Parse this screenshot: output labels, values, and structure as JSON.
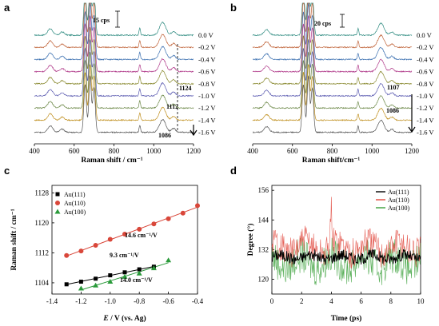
{
  "figure": {
    "panel_letters": [
      "a",
      "b",
      "c",
      "d"
    ]
  },
  "chart_data": [
    {
      "panel": "a",
      "type": "line",
      "xlabel": "Raman shift / cm⁻¹",
      "xlim": [
        400,
        1200
      ],
      "xticks": [
        "400",
        "600",
        "800",
        "1000",
        "1200"
      ],
      "series_labels": [
        "0.0 V",
        "-0.2 V",
        "-0.4 V",
        "-0.6 V",
        "-0.8 V",
        "-1.0 V",
        "-1.2 V",
        "-1.4 V",
        "-1.6 V"
      ],
      "series_colors": [
        "#2e8b80",
        "#c0643a",
        "#3a6fb0",
        "#b03a8a",
        "#8a8a30",
        "#5a5ab0",
        "#6e8a4a",
        "#c09020",
        "#555555"
      ],
      "annotations": [
        "15 cps",
        "1124",
        "1112",
        "1086"
      ],
      "peaks": [
        {
          "center": 480,
          "width": 18,
          "height": 8
        },
        {
          "center": 540,
          "width": 15,
          "height": 4
        },
        {
          "center": 655,
          "width": 9,
          "height": 60
        },
        {
          "center": 680,
          "width": 9,
          "height": 70
        },
        {
          "center": 700,
          "width": 9,
          "height": 55
        },
        {
          "center": 930,
          "width": 5,
          "height": 9
        },
        {
          "center": 1045,
          "width": 22,
          "height": 16
        },
        {
          "center": 1100,
          "width": 14,
          "height": 5
        }
      ]
    },
    {
      "panel": "b",
      "type": "line",
      "xlabel": "Raman shift/cm⁻¹",
      "xlim": [
        400,
        1200
      ],
      "xticks": [
        "400",
        "600",
        "800",
        "1000",
        "1200"
      ],
      "series_labels": [
        "0.0 V",
        "-0.2 V",
        "-0.4 V",
        "-0.6 V",
        "-0.8 V",
        "-1.0 V",
        "-1.2 V",
        "-1.4 V",
        "-1.6 V"
      ],
      "series_colors": [
        "#2e8b80",
        "#c0643a",
        "#3a6fb0",
        "#b03a8a",
        "#8a8a30",
        "#5a5ab0",
        "#6e8a4a",
        "#c09020",
        "#555555"
      ],
      "annotations": [
        "20 cps",
        "1107",
        "1086"
      ],
      "peaks": [
        {
          "center": 470,
          "width": 18,
          "height": 7
        },
        {
          "center": 655,
          "width": 9,
          "height": 60
        },
        {
          "center": 680,
          "width": 9,
          "height": 70
        },
        {
          "center": 700,
          "width": 9,
          "height": 55
        },
        {
          "center": 930,
          "width": 5,
          "height": 8
        },
        {
          "center": 1045,
          "width": 22,
          "height": 15
        },
        {
          "center": 1100,
          "width": 14,
          "height": 4
        }
      ]
    },
    {
      "panel": "c",
      "type": "scatter",
      "xlabel": "E / V (vs. Ag)",
      "ylabel": "Raman shift / cm⁻¹",
      "xlim": [
        -1.4,
        -0.4
      ],
      "ylim": [
        1101,
        1130
      ],
      "xticks": [
        "-1.4",
        "-1.2",
        "-1.0",
        "-0.8",
        "-0.6",
        "-0.4"
      ],
      "yticks": [
        "1104",
        "1112",
        "1120",
        "1128"
      ],
      "series": [
        {
          "name": "Au(111)",
          "color": "#000000",
          "marker": "square",
          "x": [
            -1.3,
            -1.2,
            -1.1,
            -1.0,
            -0.9,
            -0.8,
            -0.7
          ],
          "y": [
            1103.6,
            1104.3,
            1105.1,
            1106.0,
            1106.8,
            1107.6,
            1108.3
          ],
          "slope_label": "9.3 cm⁻¹/V"
        },
        {
          "name": "Au(110)",
          "color": "#d9473a",
          "marker": "circle",
          "x": [
            -1.3,
            -1.2,
            -1.1,
            -1.0,
            -0.9,
            -0.8,
            -0.7,
            -0.6,
            -0.5,
            -0.4
          ],
          "y": [
            1111.3,
            1112.5,
            1114.0,
            1115.6,
            1117.0,
            1118.3,
            1119.7,
            1121.1,
            1122.6,
            1124.6
          ],
          "slope_label": "14.6 cm⁻¹/V"
        },
        {
          "name": "Au(100)",
          "color": "#2a9a3a",
          "marker": "triangle",
          "x": [
            -1.2,
            -1.1,
            -1.0,
            -0.9,
            -0.8,
            -0.7,
            -0.6
          ],
          "y": [
            1102.5,
            1103.3,
            1104.3,
            1105.6,
            1106.5,
            1107.9,
            1110.0
          ],
          "slope_label": "14.0 cm⁻¹/V"
        }
      ]
    },
    {
      "panel": "d",
      "type": "line",
      "xlabel": "Time (ps)",
      "ylabel": "Degree (°)",
      "xlim": [
        0,
        10
      ],
      "ylim": [
        114,
        158
      ],
      "xticks": [
        "0",
        "2",
        "4",
        "6",
        "8",
        "10"
      ],
      "yticks": [
        "120",
        "132",
        "144",
        "156"
      ],
      "series": [
        {
          "name": "Au(111)",
          "color": "#000000",
          "mean": 129,
          "amplitude": 3
        },
        {
          "name": "Au(110)",
          "color": "#e0463c",
          "mean": 133,
          "amplitude": 8
        },
        {
          "name": "Au(100)",
          "color": "#3aa03a",
          "mean": 127,
          "amplitude": 9
        }
      ]
    }
  ]
}
